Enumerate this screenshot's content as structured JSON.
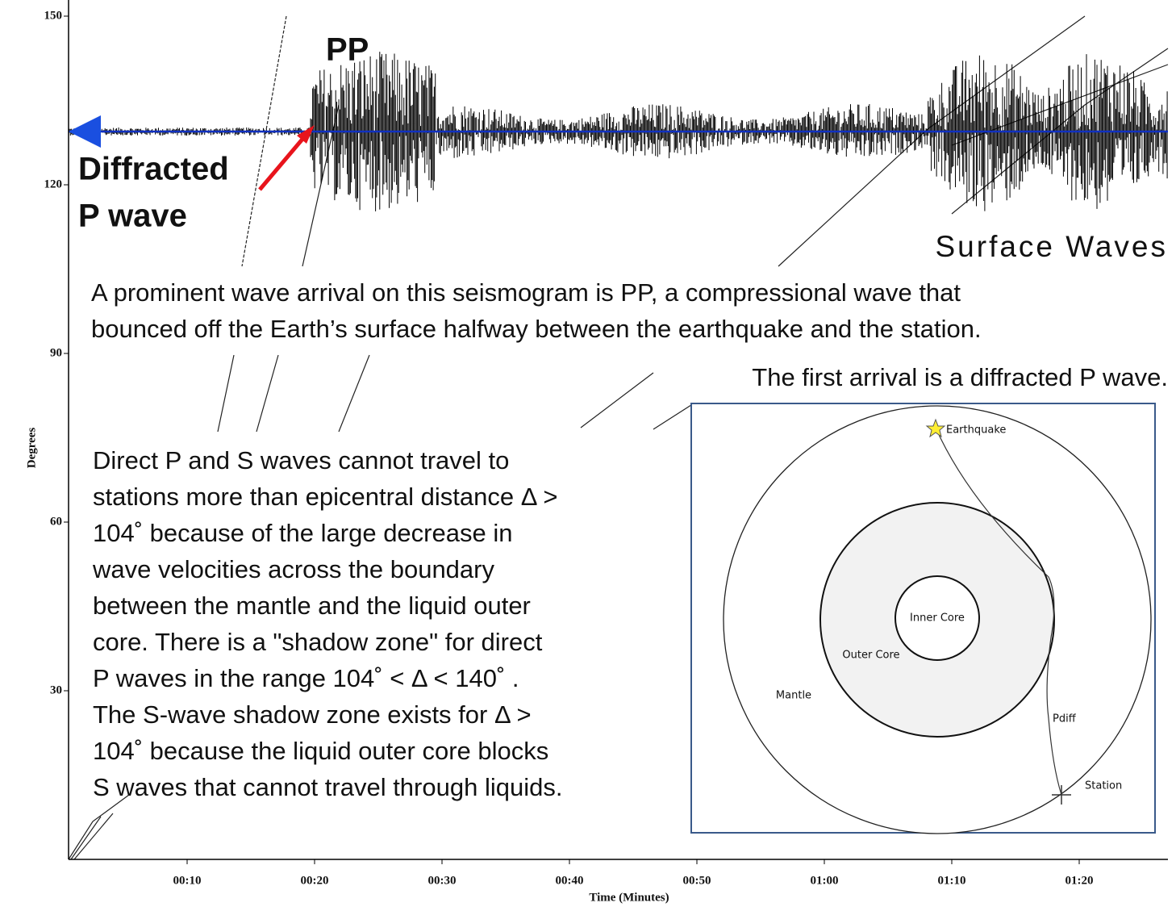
{
  "chart_data": {
    "type": "seismogram",
    "x_label": "Time (Minutes)",
    "y_label": "Degrees",
    "xlim": [
      0.7,
      87
    ],
    "ylim": [
      0,
      150
    ],
    "xticks": [
      {
        "value": 10,
        "label": "00:10"
      },
      {
        "value": 20,
        "label": "00:20"
      },
      {
        "value": 30,
        "label": "00:30"
      },
      {
        "value": 40,
        "label": "00:40"
      },
      {
        "value": 50,
        "label": "00:50"
      },
      {
        "value": 60,
        "label": "01:00"
      },
      {
        "value": 70,
        "label": "01:10"
      },
      {
        "value": 80,
        "label": "01:20"
      }
    ],
    "yticks": [
      30,
      60,
      90,
      120,
      150
    ]
  },
  "annotations": {
    "pp": "PP",
    "diffracted": [
      "Diffracted",
      "P wave"
    ],
    "surface_waves": "Surface Waves",
    "paragraph_1": [
      "A prominent wave arrival on this seismogram is PP, a compressional wave that",
      "bounced off the Earth’s surface halfway between the earthquake and the station."
    ],
    "paragraph_2": "The first arrival is a diffracted P wave.",
    "paragraph_3": [
      "Direct P and S waves cannot travel to",
      "stations more than epicentral distance Δ >",
      "104˚  because of the large decrease in",
      "wave velocities across the boundary",
      "between the mantle and the liquid outer",
      "core.  There is a \"shadow zone\" for direct",
      "P waves in the range 104˚  < Δ < 140˚ .",
      "The S-wave shadow zone exists for Δ >",
      "104˚  because the liquid outer core blocks",
      "S waves that cannot travel through liquids."
    ]
  },
  "inset": {
    "earthquake": "Earthquake",
    "inner_core": "Inner Core",
    "outer_core": "Outer Core",
    "mantle": "Mantle",
    "pdiff": "Pdiff",
    "station": "Station"
  }
}
